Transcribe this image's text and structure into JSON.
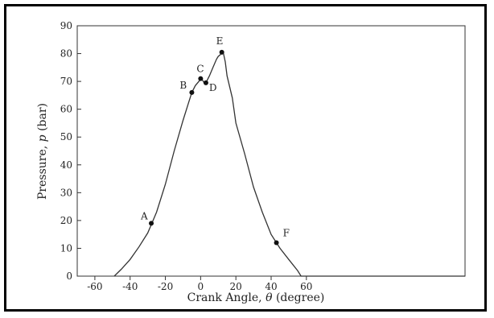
{
  "chart_data": {
    "type": "line",
    "title": "",
    "xlabel_prefix": "Crank Angle, ",
    "xlabel_symbol": "θ",
    "xlabel_suffix": " (degree)",
    "ylabel_prefix": "Pressure, ",
    "ylabel_symbol": "p",
    "ylabel_suffix": " (bar)",
    "xlim": [
      -70,
      150
    ],
    "ylim": [
      0,
      90
    ],
    "xticks": [
      -60,
      -40,
      -20,
      0,
      20,
      40,
      60
    ],
    "yticks": [
      0,
      10,
      20,
      30,
      40,
      50,
      60,
      70,
      80,
      90
    ],
    "grid": false,
    "series": [
      {
        "color": "#333333",
        "x": [
          -49,
          -45,
          -40,
          -35,
          -30,
          -28,
          -25,
          -20,
          -15,
          -10,
          -7,
          -5,
          -3,
          -1,
          0,
          1,
          2,
          3,
          5,
          7,
          9,
          10,
          11,
          12,
          13,
          14,
          15,
          18,
          20,
          25,
          30,
          35,
          40,
          43,
          45,
          50,
          55,
          57,
          60,
          70,
          150
        ],
        "y": [
          0,
          2.5,
          6,
          10.5,
          15.5,
          18.5,
          23,
          33,
          45,
          56,
          62,
          66,
          68.5,
          70,
          71,
          70.5,
          69.5,
          69.5,
          72,
          75,
          78,
          79,
          79.5,
          80.5,
          80,
          77,
          72,
          64,
          55,
          44,
          32,
          23,
          15,
          12,
          10,
          6,
          2,
          0,
          0,
          0,
          0
        ]
      }
    ],
    "markers": [
      {
        "label": "A",
        "x": -28,
        "y": 19
      },
      {
        "label": "B",
        "x": -5,
        "y": 66
      },
      {
        "label": "C",
        "x": 0,
        "y": 71
      },
      {
        "label": "D",
        "x": 3,
        "y": 69.5
      },
      {
        "label": "E",
        "x": 12,
        "y": 80.5
      },
      {
        "label": "F",
        "x": 43,
        "y": 12
      }
    ]
  }
}
